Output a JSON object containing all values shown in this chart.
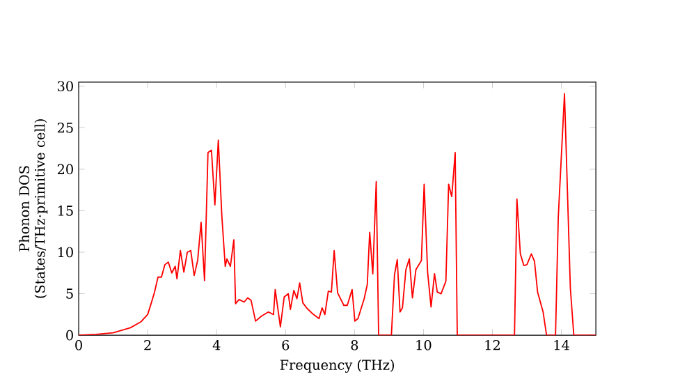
{
  "chart_data": {
    "type": "line",
    "xlabel": "Frequency (THz)",
    "ylabel": "Phonon DOS\n(States/THz·primitive cell)",
    "xlim": [
      0,
      15
    ],
    "ylim": [
      0,
      30.5
    ],
    "xticks": [
      0,
      2,
      4,
      6,
      8,
      10,
      12,
      14
    ],
    "yticks": [
      0,
      5,
      10,
      15,
      20,
      25,
      30
    ],
    "grid": false,
    "marker": "none",
    "line_style": "solid",
    "series": [
      {
        "color": "#ff0000",
        "x": [
          0,
          0.5,
          1,
          1.5,
          1.8,
          2.0,
          2.1,
          2.2,
          2.3,
          2.4,
          2.5,
          2.6,
          2.7,
          2.8,
          2.85,
          2.95,
          3.05,
          3.15,
          3.25,
          3.35,
          3.45,
          3.55,
          3.65,
          3.75,
          3.85,
          3.95,
          4.05,
          4.15,
          4.25,
          4.3,
          4.4,
          4.5,
          4.55,
          4.65,
          4.8,
          4.9,
          5.0,
          5.13,
          5.3,
          5.5,
          5.65,
          5.7,
          5.85,
          5.96,
          6.08,
          6.14,
          6.24,
          6.33,
          6.41,
          6.5,
          6.63,
          6.81,
          6.97,
          7.06,
          7.14,
          7.24,
          7.33,
          7.41,
          7.51,
          7.69,
          7.79,
          7.93,
          8.01,
          8.1,
          8.28,
          8.37,
          8.44,
          8.53,
          8.63,
          8.7,
          9.07,
          9.16,
          9.24,
          9.32,
          9.39,
          9.49,
          9.59,
          9.68,
          9.78,
          9.94,
          10.02,
          10.12,
          10.22,
          10.32,
          10.4,
          10.51,
          10.65,
          10.73,
          10.82,
          10.92,
          10.98,
          12.64,
          12.71,
          12.81,
          12.91,
          13.0,
          13.13,
          13.22,
          13.31,
          13.47,
          13.57,
          13.83,
          13.91,
          14.09,
          14.26,
          14.36,
          15
        ],
        "values": [
          0,
          0.1,
          0.3,
          0.9,
          1.6,
          2.5,
          3.8,
          5.2,
          7.0,
          7.0,
          8.5,
          8.8,
          7.5,
          8.3,
          6.8,
          10.2,
          7.6,
          10.0,
          10.2,
          7.2,
          9.0,
          13.6,
          6.6,
          22.0,
          22.3,
          15.7,
          23.5,
          14.5,
          8.3,
          9.2,
          8.3,
          11.5,
          3.8,
          4.3,
          4.0,
          4.5,
          4.2,
          1.7,
          2.3,
          2.8,
          2.5,
          5.5,
          1.0,
          4.6,
          5.0,
          3.1,
          5.4,
          4.4,
          6.3,
          3.9,
          3.2,
          2.5,
          2.0,
          3.3,
          2.5,
          5.3,
          5.2,
          10.2,
          5.1,
          3.6,
          3.6,
          5.5,
          1.7,
          2.0,
          4.4,
          6.1,
          12.4,
          7.4,
          18.5,
          0,
          0,
          7.3,
          9.1,
          2.8,
          3.3,
          7.9,
          9.2,
          4.5,
          7.9,
          9.0,
          18.2,
          7.6,
          3.4,
          7.4,
          5.2,
          5.0,
          6.5,
          18.2,
          16.7,
          22.0,
          0,
          0,
          16.4,
          9.8,
          8.4,
          8.5,
          9.8,
          8.9,
          5.2,
          2.8,
          0,
          0,
          14.2,
          29.1,
          5.7,
          0,
          0
        ]
      }
    ]
  }
}
